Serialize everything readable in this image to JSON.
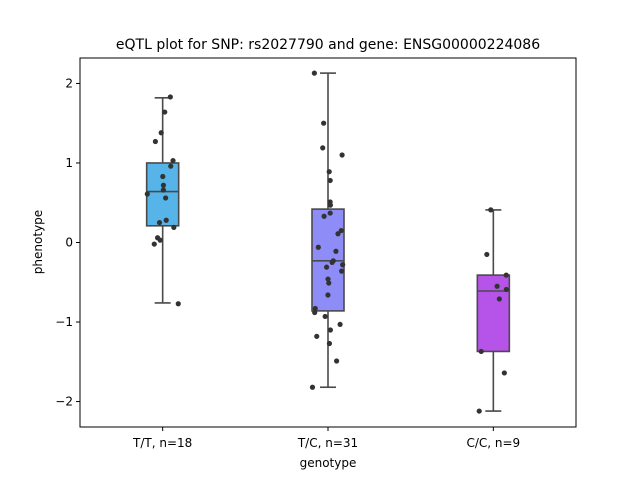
{
  "chart_data": {
    "type": "box",
    "title": "eQTL plot for SNP: rs2027790 and gene: ENSG00000224086",
    "xlabel": "genotype",
    "ylabel": "phenotype",
    "ylim": [
      -2.32,
      2.32
    ],
    "yticks": [
      {
        "value": 2,
        "label": "2"
      },
      {
        "value": 1,
        "label": "1"
      },
      {
        "value": 0,
        "label": "0"
      },
      {
        "value": -1,
        "label": "−1"
      },
      {
        "value": -2,
        "label": "−2"
      }
    ],
    "categories": [
      "T/T, n=18",
      "T/C, n=31",
      "C/C, n=9"
    ],
    "colors": [
      "#56b4e9",
      "#8e8cf6",
      "#b653e9"
    ],
    "point_color": "#333333",
    "line_color": "#4a4a4a",
    "boxes": [
      {
        "category": "T/T, n=18",
        "whisker_low": -0.76,
        "q1": 0.21,
        "median": 0.64,
        "q3": 1.0,
        "whisker_high": 1.82
      },
      {
        "category": "T/C, n=31",
        "whisker_low": -1.82,
        "q1": -0.86,
        "median": -0.23,
        "q3": 0.42,
        "whisker_high": 2.13
      },
      {
        "category": "C/C, n=9",
        "whisker_low": -2.12,
        "q1": -1.37,
        "median": -0.61,
        "q3": -0.41,
        "whisker_high": 0.41
      }
    ],
    "points": [
      [
        1.83,
        1.64,
        1.38,
        1.27,
        1.03,
        0.96,
        0.83,
        0.72,
        0.66,
        0.61,
        0.56,
        0.28,
        0.25,
        0.19,
        0.06,
        0.03,
        -0.02,
        -0.77
      ],
      [
        2.13,
        1.5,
        1.19,
        1.1,
        0.89,
        0.78,
        0.51,
        0.47,
        0.37,
        0.33,
        0.15,
        0.11,
        -0.06,
        -0.11,
        -0.23,
        -0.28,
        -0.31,
        -0.36,
        -0.46,
        -0.51,
        -0.66,
        -0.83,
        -0.88,
        -0.93,
        -1.03,
        -1.1,
        -1.18,
        -1.27,
        -1.49,
        -1.82,
        -0.25
      ],
      [
        0.41,
        -0.15,
        -0.41,
        -0.55,
        -0.59,
        -0.71,
        -1.37,
        -1.64,
        -2.12
      ]
    ]
  }
}
